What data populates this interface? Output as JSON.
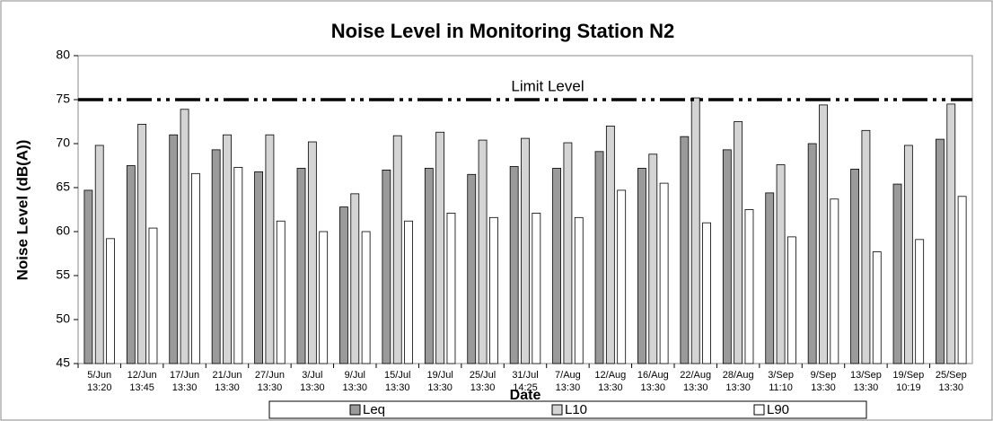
{
  "chart_data": {
    "type": "bar",
    "title": "Noise Level in Monitoring Station N2",
    "y_label": "Noise Level (dB(A))",
    "x_label": "Date",
    "categories": [
      [
        "5/Jun",
        "13:20"
      ],
      [
        "12/Jun",
        "13:45"
      ],
      [
        "17/Jun",
        "13:30"
      ],
      [
        "21/Jun",
        "13:30"
      ],
      [
        "27/Jun",
        "13:30"
      ],
      [
        "3/Jul",
        "13:30"
      ],
      [
        "9/Jul",
        "13:30"
      ],
      [
        "15/Jul",
        "13:30"
      ],
      [
        "19/Jul",
        "13:30"
      ],
      [
        "25/Jul",
        "13:30"
      ],
      [
        "31/Jul",
        "14:25"
      ],
      [
        "7/Aug",
        "13:30"
      ],
      [
        "12/Aug",
        "13:30"
      ],
      [
        "16/Aug",
        "13:30"
      ],
      [
        "22/Aug",
        "13:30"
      ],
      [
        "28/Aug",
        "13:30"
      ],
      [
        "3/Sep",
        "11:10"
      ],
      [
        "9/Sep",
        "13:30"
      ],
      [
        "13/Sep",
        "13:30"
      ],
      [
        "19/Sep",
        "10:19"
      ],
      [
        "25/Sep",
        "13:30"
      ]
    ],
    "series": [
      {
        "name": "Leq",
        "color": "#9a9a9a",
        "values": [
          64.7,
          67.5,
          71.0,
          69.3,
          66.8,
          67.2,
          62.8,
          67.0,
          67.2,
          66.5,
          67.4,
          67.2,
          69.1,
          67.2,
          70.8,
          69.3,
          64.4,
          70.0,
          67.1,
          65.4,
          70.5
        ]
      },
      {
        "name": "L10",
        "color": "#d4d4d4",
        "values": [
          69.8,
          72.2,
          73.9,
          71.0,
          71.0,
          70.2,
          64.3,
          70.9,
          71.3,
          70.4,
          70.6,
          70.1,
          72.0,
          68.8,
          75.2,
          72.5,
          67.6,
          74.4,
          71.5,
          69.8,
          74.5
        ]
      },
      {
        "name": "L90",
        "color": "#ffffff",
        "values": [
          59.2,
          60.4,
          66.6,
          67.3,
          61.2,
          60.0,
          60.0,
          61.2,
          62.1,
          61.6,
          62.1,
          61.6,
          64.7,
          65.5,
          61.0,
          62.5,
          59.4,
          63.7,
          57.7,
          59.1,
          64.0
        ]
      }
    ],
    "limit": {
      "value": 75,
      "label": "Limit Level"
    },
    "ylim": [
      45,
      80
    ],
    "yticks": [
      45,
      50,
      55,
      60,
      65,
      70,
      75,
      80
    ],
    "legend": "bottom"
  }
}
